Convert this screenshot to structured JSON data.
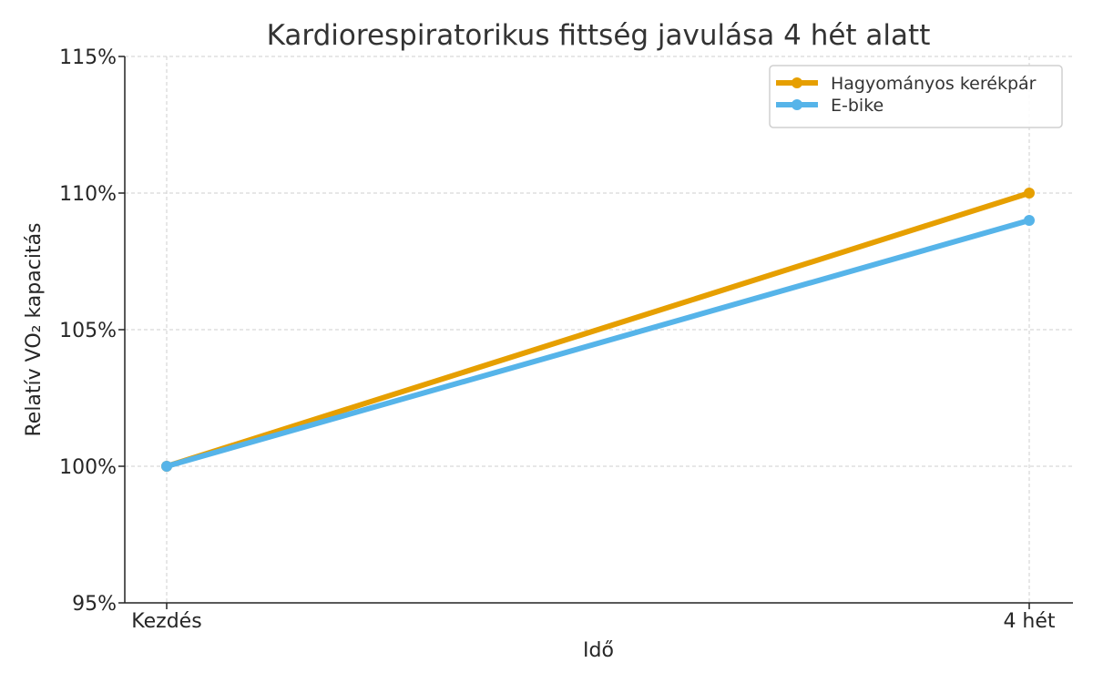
{
  "chart_data": {
    "type": "line",
    "title": "Kardiorespiratorikus fittség javulása 4 hét alatt",
    "xlabel": "Idő",
    "ylabel": "Relatív VO₂ kapacitás",
    "categories": [
      "Kezdés",
      "4 hét"
    ],
    "ylim": [
      95,
      115
    ],
    "yticks": [
      95,
      100,
      105,
      110,
      115
    ],
    "ytick_labels": [
      "95%",
      "100%",
      "105%",
      "110%",
      "115%"
    ],
    "grid": true,
    "legend_position": "top-right",
    "series": [
      {
        "name": "Hagyományos kerékpár",
        "values": [
          100,
          110
        ],
        "color": "#E69F00"
      },
      {
        "name": "E-bike",
        "values": [
          100,
          109
        ],
        "color": "#56B4E9"
      }
    ]
  }
}
